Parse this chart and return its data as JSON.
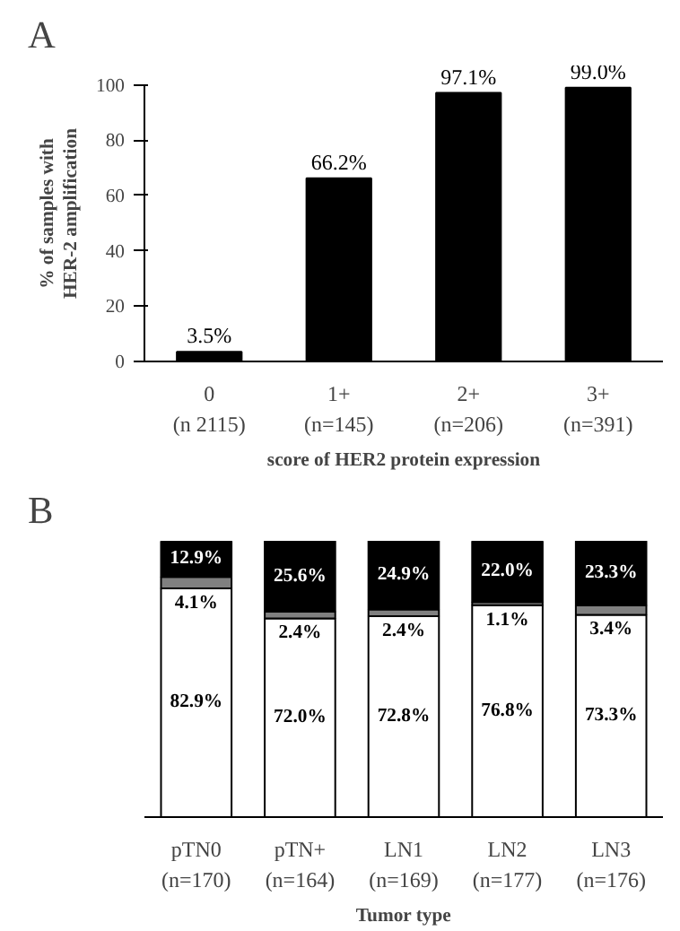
{
  "chart_data": [
    {
      "type": "bar",
      "annotations": [
        "A"
      ],
      "xlabel": "score of HER2 protein expression",
      "ylabel": "% of samples with\nHER-2 amplification",
      "categories": [
        "0\n(n 2115)",
        "1+\n(n=145)",
        "2+\n(n=206)",
        "3+\n(n=391)"
      ],
      "values": [
        3.5,
        66.2,
        97.1,
        99.0
      ],
      "color": "#000000",
      "value_labels": [
        "3.5%",
        "66.2%",
        "97.1%",
        "99.0%"
      ],
      "ylim": [
        0,
        100
      ],
      "yticks": [
        0,
        20,
        40,
        60,
        80,
        100
      ]
    },
    {
      "type": "bar",
      "annotations": [
        "B"
      ],
      "xlabel": "Tumor type",
      "stacked": true,
      "tick_labels": "x",
      "categories": [
        "pTN0\n(n=170)",
        "pTN+\n(n=164)",
        "LN1\n(n=169)",
        "LN2\n(n=177)",
        "LN3\n(n=176)"
      ],
      "series": [
        {
          "color": "#ffffff",
          "values": [
            82.9,
            72.0,
            72.8,
            76.8,
            73.3
          ],
          "value_labels": [
            "82.9%",
            "72.0%",
            "72.8%",
            "76.8%",
            "73.3%"
          ]
        },
        {
          "color": "#808080",
          "values": [
            4.1,
            2.4,
            2.4,
            1.1,
            3.4
          ],
          "value_labels": [
            "4.1%",
            "2.4%",
            "2.4%",
            "1.1%",
            "3.4%"
          ]
        },
        {
          "color": "#000000",
          "values": [
            12.9,
            25.6,
            24.9,
            22.0,
            23.3
          ],
          "value_labels": [
            "12.9%",
            "25.6%",
            "24.9%",
            "22.0%",
            "23.3%"
          ]
        }
      ]
    }
  ]
}
